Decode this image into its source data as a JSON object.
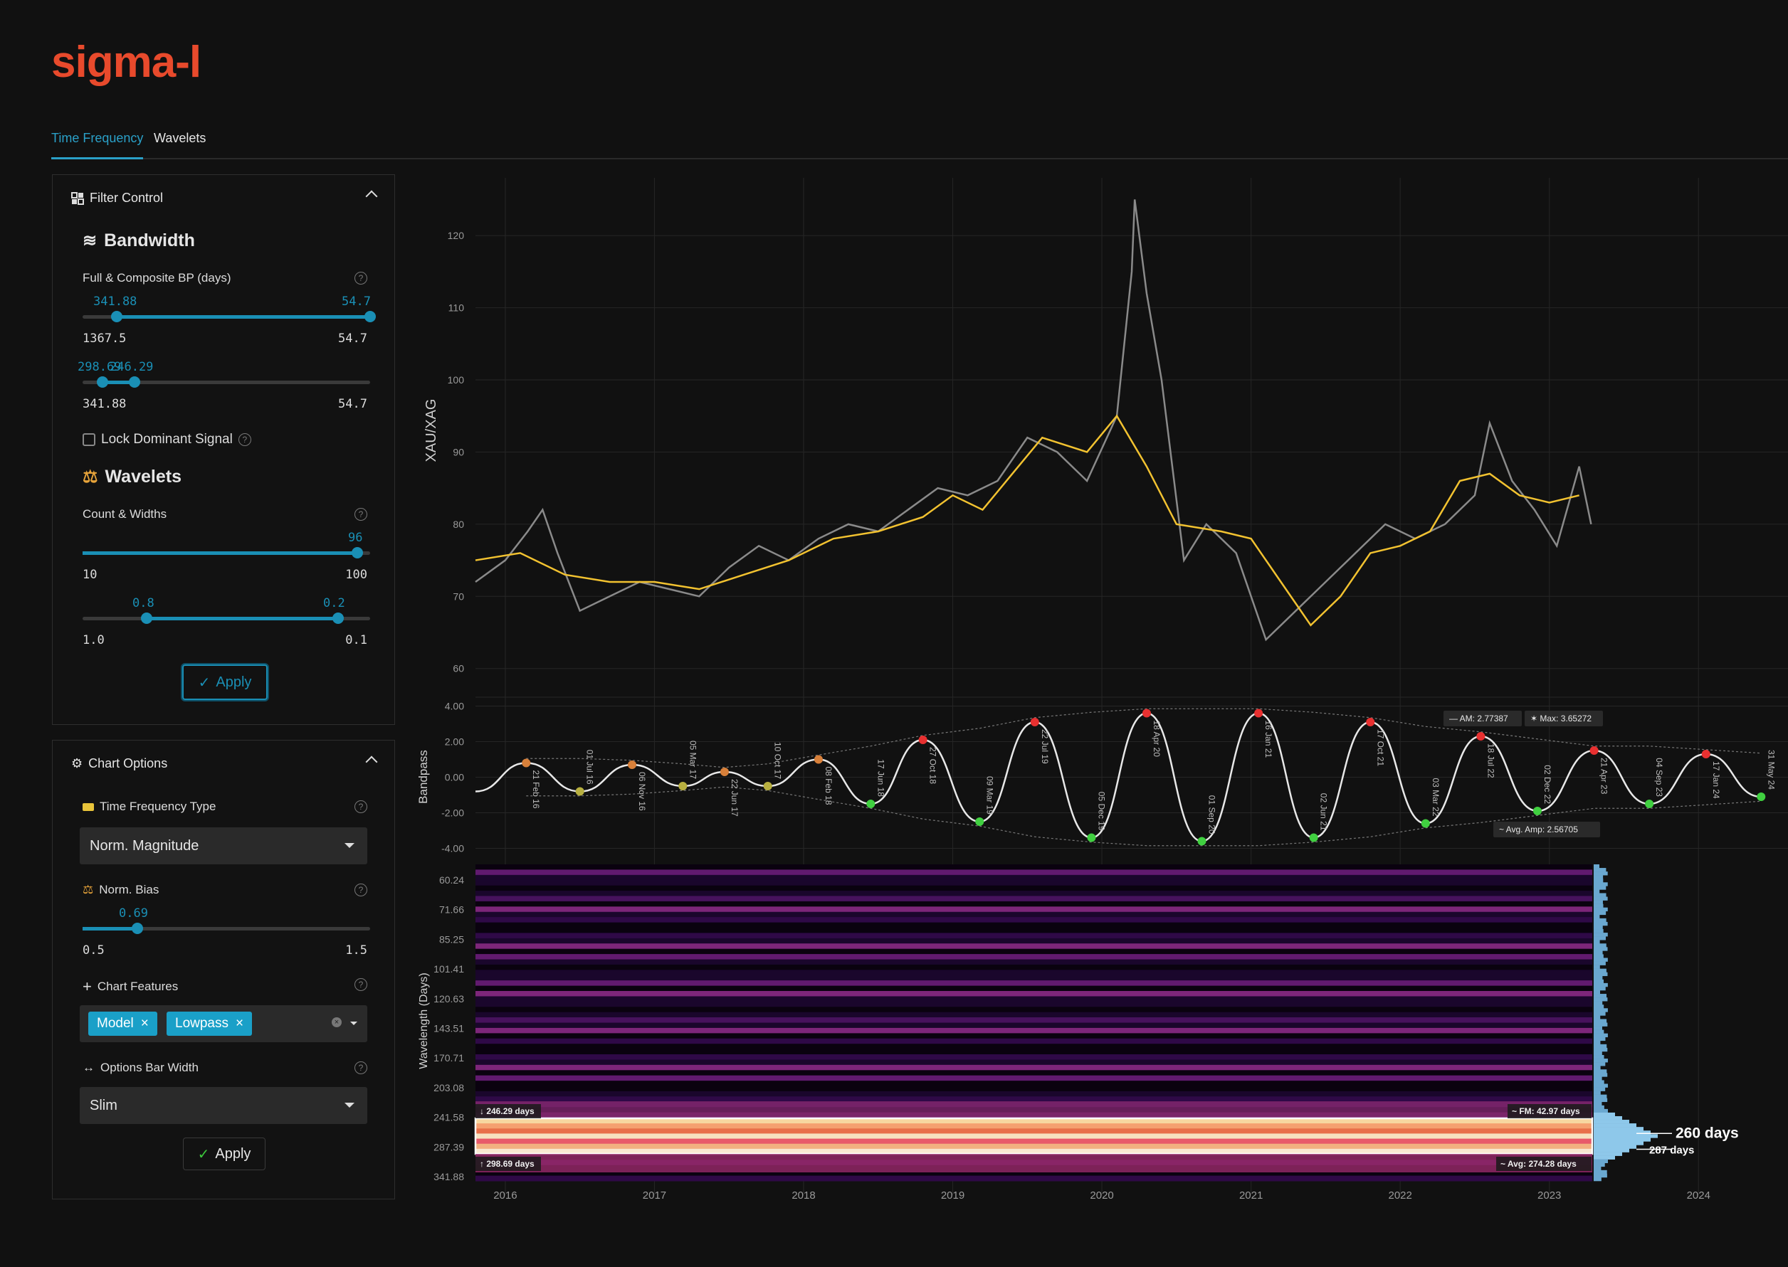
{
  "app": {
    "logo": "sigma-l"
  },
  "tabs": [
    {
      "label": "Time Frequency",
      "active": true
    },
    {
      "label": "Wavelets",
      "active": false
    }
  ],
  "filter_control": {
    "title": "Filter Control",
    "bandwidth": {
      "title": "Bandwidth",
      "full_composite": {
        "label": "Full & Composite BP (days)",
        "low_val": "341.88",
        "high_val": "54.7",
        "min": "1367.5",
        "max": "54.7",
        "low_frac": 0.12,
        "high_frac": 1.0
      },
      "inner": {
        "low_val": "298.69",
        "high_val": "246.29",
        "min": "341.88",
        "max": "54.7",
        "low_frac": 0.07,
        "high_frac": 0.18
      },
      "lock_label": "Lock Dominant Signal"
    },
    "wavelets": {
      "title": "Wavelets",
      "count_label": "Count & Widths",
      "count": {
        "val": "96",
        "min": "10",
        "max": "100",
        "frac": 0.955
      },
      "widths": {
        "low_val": "0.8",
        "high_val": "0.2",
        "min": "1.0",
        "max": "0.1",
        "low_frac": 0.222,
        "high_frac": 0.889
      }
    },
    "apply_label": "Apply"
  },
  "chart_options": {
    "title": "Chart Options",
    "tf_type_label": "Time Frequency Type",
    "tf_type_value": "Norm. Magnitude",
    "bias_label": "Norm. Bias",
    "bias": {
      "val": "0.69",
      "min": "0.5",
      "max": "1.5",
      "frac": 0.19
    },
    "features_label": "Chart Features",
    "features": [
      "Model",
      "Lowpass"
    ],
    "bar_width_label": "Options Bar Width",
    "bar_width_value": "Slim",
    "apply_label": "Apply"
  },
  "chart_data": [
    {
      "type": "line",
      "ylabel": "XAU/XAG",
      "yticks": [
        60,
        70,
        80,
        90,
        100,
        110,
        120
      ],
      "ylim": [
        58,
        128
      ],
      "xticks": [
        "2016",
        "2017",
        "2018",
        "2019",
        "2020",
        "2021",
        "2022",
        "2023",
        "2024"
      ],
      "xlim": [
        2015.8,
        2024.6
      ],
      "price": {
        "x": [
          2015.8,
          2016.0,
          2016.15,
          2016.25,
          2016.35,
          2016.5,
          2016.7,
          2016.9,
          2017.1,
          2017.3,
          2017.5,
          2017.7,
          2017.9,
          2018.1,
          2018.3,
          2018.5,
          2018.7,
          2018.9,
          2019.1,
          2019.3,
          2019.5,
          2019.7,
          2019.9,
          2020.1,
          2020.2,
          2020.22,
          2020.3,
          2020.4,
          2020.55,
          2020.7,
          2020.9,
          2021.1,
          2021.3,
          2021.5,
          2021.7,
          2021.9,
          2022.1,
          2022.3,
          2022.5,
          2022.6,
          2022.75,
          2022.9,
          2023.05,
          2023.2,
          2023.28
        ],
        "y": [
          72,
          75,
          79,
          82,
          76,
          68,
          70,
          72,
          71,
          70,
          74,
          77,
          75,
          78,
          80,
          79,
          82,
          85,
          84,
          86,
          92,
          90,
          86,
          95,
          115,
          125,
          112,
          100,
          75,
          80,
          76,
          64,
          68,
          72,
          76,
          80,
          78,
          80,
          84,
          94,
          86,
          82,
          77,
          88,
          80
        ]
      },
      "lowpass": {
        "x": [
          2015.8,
          2016.1,
          2016.4,
          2016.7,
          2017.0,
          2017.3,
          2017.6,
          2017.9,
          2018.2,
          2018.5,
          2018.8,
          2019.0,
          2019.2,
          2019.4,
          2019.6,
          2019.9,
          2020.1,
          2020.3,
          2020.5,
          2020.8,
          2021.0,
          2021.2,
          2021.4,
          2021.6,
          2021.8,
          2022.0,
          2022.2,
          2022.4,
          2022.6,
          2022.8,
          2023.0,
          2023.2
        ],
        "y": [
          75,
          76,
          73,
          72,
          72,
          71,
          73,
          75,
          78,
          79,
          81,
          84,
          82,
          87,
          92,
          90,
          95,
          88,
          80,
          79,
          78,
          72,
          66,
          70,
          76,
          77,
          79,
          86,
          87,
          84,
          83,
          84
        ]
      }
    },
    {
      "type": "line",
      "ylabel": "Bandpass",
      "yticks": [
        "4.00",
        "2.00",
        "0.00",
        "-2.00",
        "-4.00"
      ],
      "ylim": [
        -4.5,
        4.5
      ],
      "annotations": [
        "AM: 2.77387",
        "Max: 3.65272",
        "Avg. Amp: 2.56705"
      ],
      "turning_points": [
        {
          "x": 2016.14,
          "y": 0.8,
          "label": "21 Feb 16"
        },
        {
          "x": 2016.5,
          "y": -0.8,
          "label": "01 Jul 16"
        },
        {
          "x": 2016.85,
          "y": 0.7,
          "label": "06 Nov 16"
        },
        {
          "x": 2017.19,
          "y": -0.5,
          "label": "05 Mar 17"
        },
        {
          "x": 2017.47,
          "y": 0.3,
          "label": "22 Jun 17"
        },
        {
          "x": 2017.76,
          "y": -0.5,
          "label": "10 Oct 17"
        },
        {
          "x": 2018.1,
          "y": 1.0,
          "label": "08 Feb 18"
        },
        {
          "x": 2018.45,
          "y": -1.5,
          "label": "17 Jun 18"
        },
        {
          "x": 2018.8,
          "y": 2.1,
          "label": "27 Oct 18"
        },
        {
          "x": 2019.18,
          "y": -2.5,
          "label": "09 Mar 19"
        },
        {
          "x": 2019.55,
          "y": 3.1,
          "label": "22 Jul 19"
        },
        {
          "x": 2019.93,
          "y": -3.4,
          "label": "05 Dec 19"
        },
        {
          "x": 2020.3,
          "y": 3.6,
          "label": "18 Apr 20"
        },
        {
          "x": 2020.67,
          "y": -3.6,
          "label": "01 Sep 20"
        },
        {
          "x": 2021.05,
          "y": 3.6,
          "label": "16 Jan 21"
        },
        {
          "x": 2021.42,
          "y": -3.4,
          "label": "02 Jun 21"
        },
        {
          "x": 2021.8,
          "y": 3.1,
          "label": "17 Oct 21"
        },
        {
          "x": 2022.17,
          "y": -2.6,
          "label": "03 Mar 22"
        },
        {
          "x": 2022.54,
          "y": 2.3,
          "label": "18 Jul 22"
        },
        {
          "x": 2022.92,
          "y": -1.9,
          "label": "02 Dec 22"
        },
        {
          "x": 2023.3,
          "y": 1.5,
          "label": "21 Apr 23"
        },
        {
          "x": 2023.67,
          "y": -1.5,
          "label": "04 Sep 23"
        },
        {
          "x": 2024.05,
          "y": 1.3,
          "label": "17 Jan 24"
        },
        {
          "x": 2024.42,
          "y": -1.1,
          "label": "31 May 24"
        }
      ]
    },
    {
      "type": "heatmap",
      "ylabel": "Wavelength (Days)",
      "yticks": [
        "60.24",
        "71.66",
        "85.25",
        "101.41",
        "120.63",
        "143.51",
        "170.71",
        "203.08",
        "241.58",
        "287.39",
        "341.88"
      ],
      "band_labels": [
        "246.29 days",
        "298.69 days",
        "FM: 42.97 days",
        "Avg: 274.28 days"
      ],
      "peak_labels": [
        {
          "label": "260 days",
          "frac": 0.85
        },
        {
          "label": "287 days",
          "frac": 0.9
        }
      ]
    }
  ]
}
